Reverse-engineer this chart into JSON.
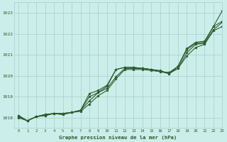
{
  "title": "Graphe pression niveau de la mer (hPa)",
  "bg_color": "#cceeea",
  "grid_color": "#aad4cc",
  "line_color": "#2d5a2d",
  "marker_color": "#2d5a2d",
  "xlim": [
    -0.5,
    23
  ],
  "ylim": [
    1017.5,
    1023.5
  ],
  "yticks": [
    1018,
    1019,
    1020,
    1021,
    1022,
    1023
  ],
  "xticks": [
    0,
    1,
    2,
    3,
    4,
    5,
    6,
    7,
    8,
    9,
    10,
    11,
    12,
    13,
    14,
    15,
    16,
    17,
    18,
    19,
    20,
    21,
    22,
    23
  ],
  "series": [
    [
      1018.0,
      1017.85,
      1018.05,
      1018.1,
      1018.2,
      1018.15,
      1018.25,
      1018.3,
      1018.65,
      1019.05,
      1019.3,
      1019.85,
      1020.3,
      1020.3,
      1020.3,
      1020.25,
      1020.2,
      1020.15,
      1020.35,
      1020.95,
      1021.35,
      1021.5,
      1022.15,
      1022.35
    ],
    [
      1018.05,
      1017.85,
      1018.05,
      1018.1,
      1018.2,
      1018.15,
      1018.25,
      1018.35,
      1019.0,
      1019.2,
      1019.4,
      1019.95,
      1020.35,
      1020.35,
      1020.35,
      1020.3,
      1020.25,
      1020.1,
      1020.35,
      1021.1,
      1021.5,
      1021.55,
      1022.2,
      1022.55
    ],
    [
      1018.1,
      1017.85,
      1018.05,
      1018.15,
      1018.2,
      1018.2,
      1018.25,
      1018.35,
      1019.15,
      1019.3,
      1019.55,
      1020.3,
      1020.4,
      1020.4,
      1020.35,
      1020.3,
      1020.2,
      1020.1,
      1020.45,
      1021.25,
      1021.55,
      1021.6,
      1022.35,
      1022.6
    ],
    [
      1018.1,
      1017.85,
      1018.05,
      1018.15,
      1018.2,
      1018.2,
      1018.25,
      1018.35,
      1018.8,
      1019.2,
      1019.5,
      1020.3,
      1020.4,
      1020.4,
      1020.35,
      1020.3,
      1020.2,
      1020.15,
      1020.45,
      1021.3,
      1021.6,
      1021.65,
      1022.35,
      1023.1
    ]
  ]
}
